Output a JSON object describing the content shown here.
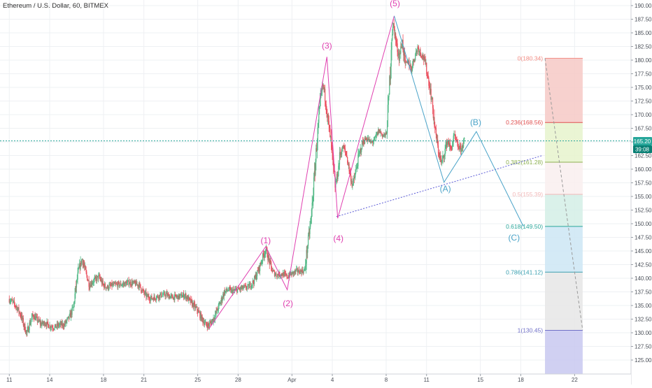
{
  "title": "Ethereum / U.S. Dollar, 60, BITMEX",
  "price_label": "165.20",
  "countdown_label": "39:08",
  "colors": {
    "up": "#53b987",
    "down": "#eb4d5c",
    "wave": "#e040b0",
    "correction": "#4aa3c8",
    "trendline": "#5b5bd6",
    "price_line": "#2aa69a",
    "price_badge": "#26a69a",
    "countdown_badge": "#087f74"
  },
  "chart_data": {
    "type": "candlestick",
    "title": "Ethereum / U.S. Dollar, 60, BITMEX",
    "ylim": [
      122.5,
      191
    ],
    "y_ticks": [
      "125.00",
      "127.50",
      "130.00",
      "132.50",
      "135.00",
      "137.50",
      "140.00",
      "142.50",
      "145.00",
      "147.50",
      "150.00",
      "152.50",
      "155.00",
      "157.50",
      "160.00",
      "162.50",
      "165.00",
      "167.50",
      "170.00",
      "172.50",
      "175.00",
      "177.50",
      "180.00",
      "182.50",
      "185.00",
      "187.50",
      "190.00"
    ],
    "x_ticks": [
      {
        "label": "11",
        "day": 11
      },
      {
        "label": "14",
        "day": 14
      },
      {
        "label": "18",
        "day": 18
      },
      {
        "label": "21",
        "day": 21
      },
      {
        "label": "25",
        "day": 25
      },
      {
        "label": "28",
        "day": 28
      },
      {
        "label": "Apr",
        "day": 32
      },
      {
        "label": "4",
        "day": 35
      },
      {
        "label": "8",
        "day": 39
      },
      {
        "label": "11",
        "day": 42
      },
      {
        "label": "15",
        "day": 46
      },
      {
        "label": "18",
        "day": 49
      },
      {
        "label": "22",
        "day": 53
      }
    ],
    "last_price": 165.2,
    "price_path": [
      [
        11.0,
        136.2
      ],
      [
        11.3,
        135.6
      ],
      [
        11.6,
        134.7
      ],
      [
        11.9,
        133.2
      ],
      [
        12.1,
        131.6
      ],
      [
        12.35,
        129.8
      ],
      [
        12.5,
        131.3
      ],
      [
        12.8,
        133.2
      ],
      [
        13.1,
        132.4
      ],
      [
        13.4,
        131.6
      ],
      [
        13.7,
        131.8
      ],
      [
        14.0,
        131.3
      ],
      [
        14.4,
        131.0
      ],
      [
        14.8,
        131.5
      ],
      [
        15.1,
        131.4
      ],
      [
        15.5,
        132.8
      ],
      [
        15.8,
        134.6
      ],
      [
        16.0,
        138.5
      ],
      [
        16.2,
        141.5
      ],
      [
        16.45,
        143.6
      ],
      [
        16.7,
        141.2
      ],
      [
        17.0,
        138.8
      ],
      [
        17.3,
        139.5
      ],
      [
        17.7,
        140.3
      ],
      [
        18.0,
        138.8
      ],
      [
        18.3,
        138.3
      ],
      [
        18.7,
        138.7
      ],
      [
        19.1,
        138.8
      ],
      [
        19.5,
        138.9
      ],
      [
        19.9,
        139.2
      ],
      [
        20.4,
        139.0
      ],
      [
        20.7,
        138.7
      ],
      [
        21.0,
        137.4
      ],
      [
        21.3,
        136.6
      ],
      [
        21.6,
        136.3
      ],
      [
        21.9,
        136.5
      ],
      [
        22.3,
        136.9
      ],
      [
        22.7,
        137.0
      ],
      [
        23.1,
        136.5
      ],
      [
        23.6,
        136.6
      ],
      [
        24.1,
        136.9
      ],
      [
        24.6,
        135.4
      ],
      [
        25.0,
        134.2
      ],
      [
        25.3,
        132.8
      ],
      [
        25.6,
        131.6
      ],
      [
        25.85,
        131.3
      ],
      [
        26.1,
        132.2
      ],
      [
        26.4,
        133.6
      ],
      [
        26.7,
        135.4
      ],
      [
        27.0,
        137.4
      ],
      [
        27.3,
        137.9
      ],
      [
        27.6,
        137.6
      ],
      [
        28.0,
        137.9
      ],
      [
        28.4,
        138.2
      ],
      [
        28.8,
        138.4
      ],
      [
        29.2,
        139.4
      ],
      [
        29.6,
        141.8
      ],
      [
        29.9,
        144.1
      ],
      [
        30.1,
        145.3
      ],
      [
        30.35,
        143.2
      ],
      [
        30.6,
        141.2
      ],
      [
        30.9,
        140.6
      ],
      [
        31.3,
        140.8
      ],
      [
        31.7,
        140.3
      ],
      [
        32.0,
        140.8
      ],
      [
        32.4,
        141.3
      ],
      [
        32.8,
        141.3
      ],
      [
        33.0,
        141.5
      ],
      [
        33.2,
        146.0
      ],
      [
        33.45,
        150.6
      ],
      [
        33.7,
        158.4
      ],
      [
        33.9,
        165.2
      ],
      [
        34.15,
        172.3
      ],
      [
        34.35,
        175.6
      ],
      [
        34.55,
        172.5
      ],
      [
        34.75,
        168.4
      ],
      [
        34.95,
        164.6
      ],
      [
        35.1,
        160.5
      ],
      [
        35.25,
        157.0
      ],
      [
        35.45,
        159.2
      ],
      [
        35.6,
        162.6
      ],
      [
        35.85,
        164.1
      ],
      [
        36.1,
        162.6
      ],
      [
        36.35,
        159.2
      ],
      [
        36.55,
        157.0
      ],
      [
        36.8,
        159.7
      ],
      [
        37.0,
        162.4
      ],
      [
        37.3,
        164.9
      ],
      [
        37.6,
        165.7
      ],
      [
        37.9,
        164.8
      ],
      [
        38.2,
        165.4
      ],
      [
        38.5,
        167.1
      ],
      [
        38.8,
        166.2
      ],
      [
        39.05,
        166.3
      ],
      [
        39.25,
        173.5
      ],
      [
        39.45,
        184.5
      ],
      [
        39.6,
        186.6
      ],
      [
        39.8,
        182.8
      ],
      [
        40.0,
        180.6
      ],
      [
        40.25,
        183.4
      ],
      [
        40.45,
        179.0
      ],
      [
        40.7,
        179.8
      ],
      [
        40.9,
        178.3
      ],
      [
        41.15,
        180.6
      ],
      [
        41.4,
        182.4
      ],
      [
        41.6,
        181.3
      ],
      [
        41.8,
        180.6
      ],
      [
        42.0,
        178.8
      ],
      [
        42.2,
        176.2
      ],
      [
        42.45,
        172.4
      ],
      [
        42.65,
        167.7
      ],
      [
        42.9,
        163.6
      ],
      [
        43.15,
        161.0
      ],
      [
        43.35,
        162.9
      ],
      [
        43.6,
        165.3
      ],
      [
        43.85,
        163.6
      ],
      [
        44.1,
        166.1
      ],
      [
        44.35,
        164.2
      ],
      [
        44.6,
        163.6
      ],
      [
        44.85,
        165.2
      ]
    ],
    "wave_labels": [
      {
        "text": "(1)",
        "day": 30.05,
        "price": 146.4
      },
      {
        "text": "(2)",
        "day": 31.7,
        "price": 134.9
      },
      {
        "text": "(3)",
        "day": 34.6,
        "price": 182.1
      },
      {
        "text": "(4)",
        "day": 35.45,
        "price": 146.8
      },
      {
        "text": "(5)",
        "day": 39.65,
        "price": 189.9
      },
      {
        "text": "(A)",
        "day": 43.4,
        "price": 155.9
      },
      {
        "text": "(B)",
        "day": 45.65,
        "price": 168.1
      },
      {
        "text": "(C)",
        "day": 48.5,
        "price": 146.9
      }
    ],
    "impulse_wave": [
      [
        25.85,
        130.8
      ],
      [
        30.05,
        145.8
      ],
      [
        31.65,
        137.9
      ],
      [
        34.6,
        180.6
      ],
      [
        35.4,
        151.0
      ],
      [
        39.6,
        188.1
      ]
    ],
    "correction_wave": [
      [
        39.6,
        188.1
      ],
      [
        43.3,
        157.6
      ],
      [
        45.7,
        166.9
      ],
      [
        49.2,
        149.5
      ]
    ],
    "trendline": [
      [
        35.3,
        151.3
      ],
      [
        50.6,
        162.5
      ]
    ],
    "fib_levels": [
      {
        "ratio": "0",
        "label": "0(180.34)",
        "price": 180.34,
        "color": "#f28b82",
        "fill": "#f6c9c6"
      },
      {
        "ratio": "0.236",
        "label": "0.236(168.56)",
        "price": 168.56,
        "color": "#e05050",
        "fill": "#e6f3cc"
      },
      {
        "ratio": "0.382",
        "label": "0.382(161.28)",
        "price": 161.28,
        "color": "#8cb050",
        "fill": "#f9eeee"
      },
      {
        "ratio": "0.5",
        "label": "0.5(155.39)",
        "price": 155.39,
        "color": "#f2b8b8",
        "fill": "#d4eee6"
      },
      {
        "ratio": "0.618",
        "label": "0.618(149.50)",
        "price": 149.5,
        "color": "#2aa69a",
        "fill": "#cce6f4"
      },
      {
        "ratio": "0.786",
        "label": "0.786(141.12)",
        "price": 141.12,
        "color": "#3aa0b0",
        "fill": "#e6e6e6"
      },
      {
        "ratio": "1",
        "label": "1(130.45)",
        "price": 130.45,
        "color": "#7070c8",
        "fill": "#c8c8f0"
      }
    ],
    "fib_bottom": 122.5,
    "fib_day_range": [
      50.8,
      53.6
    ],
    "fib_diagonal": [
      [
        50.8,
        180.34
      ],
      [
        53.6,
        130.45
      ]
    ]
  }
}
